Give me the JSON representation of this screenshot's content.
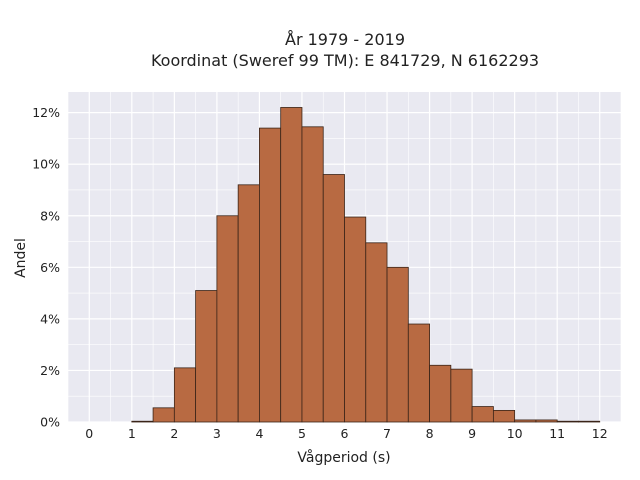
{
  "chart_data": {
    "type": "bar",
    "title_lines": [
      "År 1979 - 2019",
      "Koordinat (Sweref 99 TM): E 841729, N 6162293"
    ],
    "xlabel": "Vågperiod (s)",
    "ylabel": "Andel",
    "xlim": [
      -0.5,
      12.5
    ],
    "ylim": [
      0,
      12.8
    ],
    "x_ticks": [
      0,
      1,
      2,
      3,
      4,
      5,
      6,
      7,
      8,
      9,
      10,
      11,
      12
    ],
    "y_ticks": [
      0,
      2,
      4,
      6,
      8,
      10,
      12
    ],
    "y_tick_labels": [
      "0%",
      "2%",
      "4%",
      "6%",
      "8%",
      "10%",
      "12%"
    ],
    "bin_width": 0.5,
    "bins": [
      {
        "left": 1.0,
        "value": 0.03
      },
      {
        "left": 1.5,
        "value": 0.55
      },
      {
        "left": 2.0,
        "value": 2.1
      },
      {
        "left": 2.5,
        "value": 5.1
      },
      {
        "left": 3.0,
        "value": 8.0
      },
      {
        "left": 3.5,
        "value": 9.2
      },
      {
        "left": 4.0,
        "value": 11.4
      },
      {
        "left": 4.5,
        "value": 12.2
      },
      {
        "left": 5.0,
        "value": 11.45
      },
      {
        "left": 5.5,
        "value": 9.6
      },
      {
        "left": 6.0,
        "value": 7.95
      },
      {
        "left": 6.5,
        "value": 6.95
      },
      {
        "left": 7.0,
        "value": 6.0
      },
      {
        "left": 7.5,
        "value": 3.8
      },
      {
        "left": 8.0,
        "value": 2.2
      },
      {
        "left": 8.5,
        "value": 2.05
      },
      {
        "left": 9.0,
        "value": 0.6
      },
      {
        "left": 9.5,
        "value": 0.45
      },
      {
        "left": 10.0,
        "value": 0.08
      },
      {
        "left": 10.5,
        "value": 0.08
      },
      {
        "left": 11.0,
        "value": 0.03
      },
      {
        "left": 11.5,
        "value": 0.03
      }
    ],
    "grid": true,
    "colors": {
      "bar_fill": "#b86a42",
      "bar_stroke": "#3a2418",
      "plot_bg": "#e9e9f1",
      "grid": "#ffffff"
    }
  }
}
